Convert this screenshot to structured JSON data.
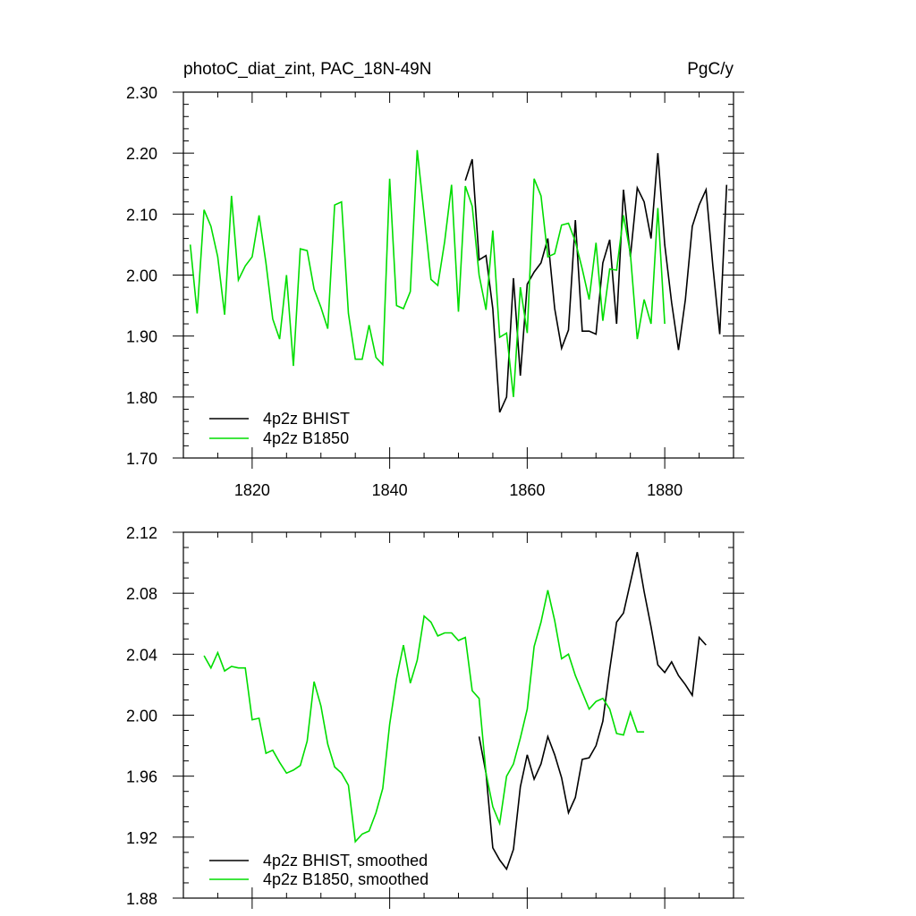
{
  "chart_data": [
    {
      "type": "line",
      "title_left": "photoC_diat_zint, PAC_18N-49N",
      "title_right": "PgC/y",
      "xlim": [
        1810,
        1890
      ],
      "ylim": [
        1.7,
        2.3
      ],
      "x_ticks": [
        1820,
        1840,
        1860,
        1880
      ],
      "x_tick_labels": [
        "1820",
        "1840",
        "1860",
        "1880"
      ],
      "y_ticks": [
        1.7,
        1.8,
        1.9,
        2.0,
        2.1,
        2.2,
        2.3
      ],
      "y_tick_labels": [
        "1.70",
        "1.80",
        "1.90",
        "2.00",
        "2.10",
        "2.20",
        "2.30"
      ],
      "legend_position": "bottom-left",
      "grid": false,
      "series": [
        {
          "name": "4p2z BHIST",
          "color": "#000000",
          "x": [
            1851,
            1852,
            1853,
            1854,
            1855,
            1856,
            1857,
            1858,
            1859,
            1860,
            1861,
            1862,
            1863,
            1864,
            1865,
            1866,
            1867,
            1868,
            1869,
            1870,
            1871,
            1872,
            1873,
            1874,
            1875,
            1876,
            1877,
            1878,
            1879,
            1880,
            1881,
            1882,
            1883,
            1884,
            1885,
            1886,
            1887,
            1888,
            1889
          ],
          "y": [
            2.155,
            2.19,
            2.025,
            2.032,
            1.945,
            1.775,
            1.8,
            1.995,
            1.835,
            1.985,
            2.005,
            2.02,
            2.06,
            1.945,
            1.88,
            1.91,
            2.09,
            1.908,
            1.908,
            1.903,
            2.02,
            2.058,
            1.92,
            2.14,
            2.03,
            2.143,
            2.12,
            2.06,
            2.2,
            2.05,
            1.955,
            1.877,
            1.96,
            2.08,
            2.115,
            2.14,
            2.015,
            1.903,
            2.148
          ]
        },
        {
          "name": "4p2z B1850",
          "color": "#00dd00",
          "x": [
            1811,
            1812,
            1813,
            1814,
            1815,
            1816,
            1817,
            1818,
            1819,
            1820,
            1821,
            1822,
            1823,
            1824,
            1825,
            1826,
            1827,
            1828,
            1829,
            1830,
            1831,
            1832,
            1833,
            1834,
            1835,
            1836,
            1837,
            1838,
            1839,
            1840,
            1841,
            1842,
            1843,
            1844,
            1845,
            1846,
            1847,
            1848,
            1849,
            1850,
            1851,
            1852,
            1853,
            1854,
            1855,
            1856,
            1857,
            1858,
            1859,
            1860,
            1861,
            1862,
            1863,
            1864,
            1865,
            1866,
            1867,
            1868,
            1869,
            1870,
            1871,
            1872,
            1873,
            1874,
            1875,
            1876,
            1877,
            1878,
            1879,
            1880
          ],
          "y": [
            2.05,
            1.937,
            2.107,
            2.08,
            2.03,
            1.935,
            2.13,
            1.992,
            2.015,
            2.03,
            2.098,
            2.02,
            1.928,
            1.895,
            2.0,
            1.851,
            2.043,
            2.04,
            1.977,
            1.947,
            1.912,
            2.115,
            2.12,
            1.937,
            1.862,
            1.862,
            1.918,
            1.865,
            1.853,
            2.158,
            1.95,
            1.945,
            1.973,
            2.205,
            2.1,
            1.993,
            1.983,
            2.055,
            2.148,
            1.94,
            2.146,
            2.113,
            2.0,
            1.943,
            2.073,
            1.898,
            1.905,
            1.8,
            1.98,
            1.905,
            2.158,
            2.13,
            2.03,
            2.035,
            2.082,
            2.085,
            2.055,
            2.01,
            1.96,
            2.053,
            1.925,
            2.01,
            2.008,
            2.098,
            2.035,
            1.895,
            1.96,
            1.92,
            2.11,
            1.92
          ]
        }
      ]
    },
    {
      "type": "line",
      "title": "",
      "xlim": [
        1810,
        1890
      ],
      "ylim": [
        1.88,
        2.12
      ],
      "x_ticks": [
        1820,
        1840,
        1860,
        1880
      ],
      "x_tick_labels": [],
      "y_ticks": [
        1.88,
        1.92,
        1.96,
        2.0,
        2.04,
        2.08,
        2.12
      ],
      "y_tick_labels": [
        "1.88",
        "1.92",
        "1.96",
        "2.00",
        "2.04",
        "2.08",
        "2.12"
      ],
      "legend_position": "bottom-left",
      "grid": false,
      "series": [
        {
          "name": "4p2z BHIST, smoothed",
          "color": "#000000",
          "x": [
            1853,
            1854,
            1855,
            1856,
            1857,
            1858,
            1859,
            1860,
            1861,
            1862,
            1863,
            1864,
            1865,
            1866,
            1867,
            1868,
            1869,
            1870,
            1871,
            1872,
            1873,
            1874,
            1875,
            1876,
            1877,
            1878,
            1879,
            1880,
            1881,
            1882,
            1883,
            1884,
            1885,
            1886
          ],
          "y": [
            1.986,
            1.962,
            1.913,
            1.905,
            1.899,
            1.912,
            1.953,
            1.974,
            1.958,
            1.968,
            1.986,
            1.974,
            1.959,
            1.936,
            1.946,
            1.971,
            1.972,
            1.98,
            1.996,
            2.03,
            2.061,
            2.067,
            2.087,
            2.107,
            2.081,
            2.058,
            2.033,
            2.028,
            2.035,
            2.026,
            2.02,
            2.013,
            2.051,
            2.046
          ]
        },
        {
          "name": "4p2z B1850, smoothed",
          "color": "#00dd00",
          "x": [
            1813,
            1814,
            1815,
            1816,
            1817,
            1818,
            1819,
            1820,
            1821,
            1822,
            1823,
            1824,
            1825,
            1826,
            1827,
            1828,
            1829,
            1830,
            1831,
            1832,
            1833,
            1834,
            1835,
            1836,
            1837,
            1838,
            1839,
            1840,
            1841,
            1842,
            1843,
            1844,
            1845,
            1846,
            1847,
            1848,
            1849,
            1850,
            1851,
            1852,
            1853,
            1854,
            1855,
            1856,
            1857,
            1858,
            1859,
            1860,
            1861,
            1862,
            1863,
            1864,
            1865,
            1866,
            1867,
            1868,
            1869,
            1870,
            1871,
            1872,
            1873,
            1874,
            1875,
            1876,
            1877
          ],
          "y": [
            2.039,
            2.031,
            2.041,
            2.029,
            2.032,
            2.031,
            2.031,
            1.997,
            1.998,
            1.975,
            1.977,
            1.969,
            1.962,
            1.964,
            1.967,
            1.983,
            2.022,
            2.006,
            1.981,
            1.966,
            1.962,
            1.954,
            1.917,
            1.922,
            1.924,
            1.936,
            1.952,
            1.994,
            2.024,
            2.046,
            2.021,
            2.036,
            2.065,
            2.061,
            2.052,
            2.054,
            2.054,
            2.049,
            2.051,
            2.016,
            2.011,
            1.962,
            1.94,
            1.929,
            1.96,
            1.968,
            1.985,
            2.004,
            2.045,
            2.061,
            2.082,
            2.062,
            2.037,
            2.04,
            2.026,
            2.015,
            2.004,
            2.009,
            2.011,
            2.004,
            1.988,
            1.987,
            2.002,
            1.989,
            1.989
          ]
        }
      ]
    }
  ]
}
